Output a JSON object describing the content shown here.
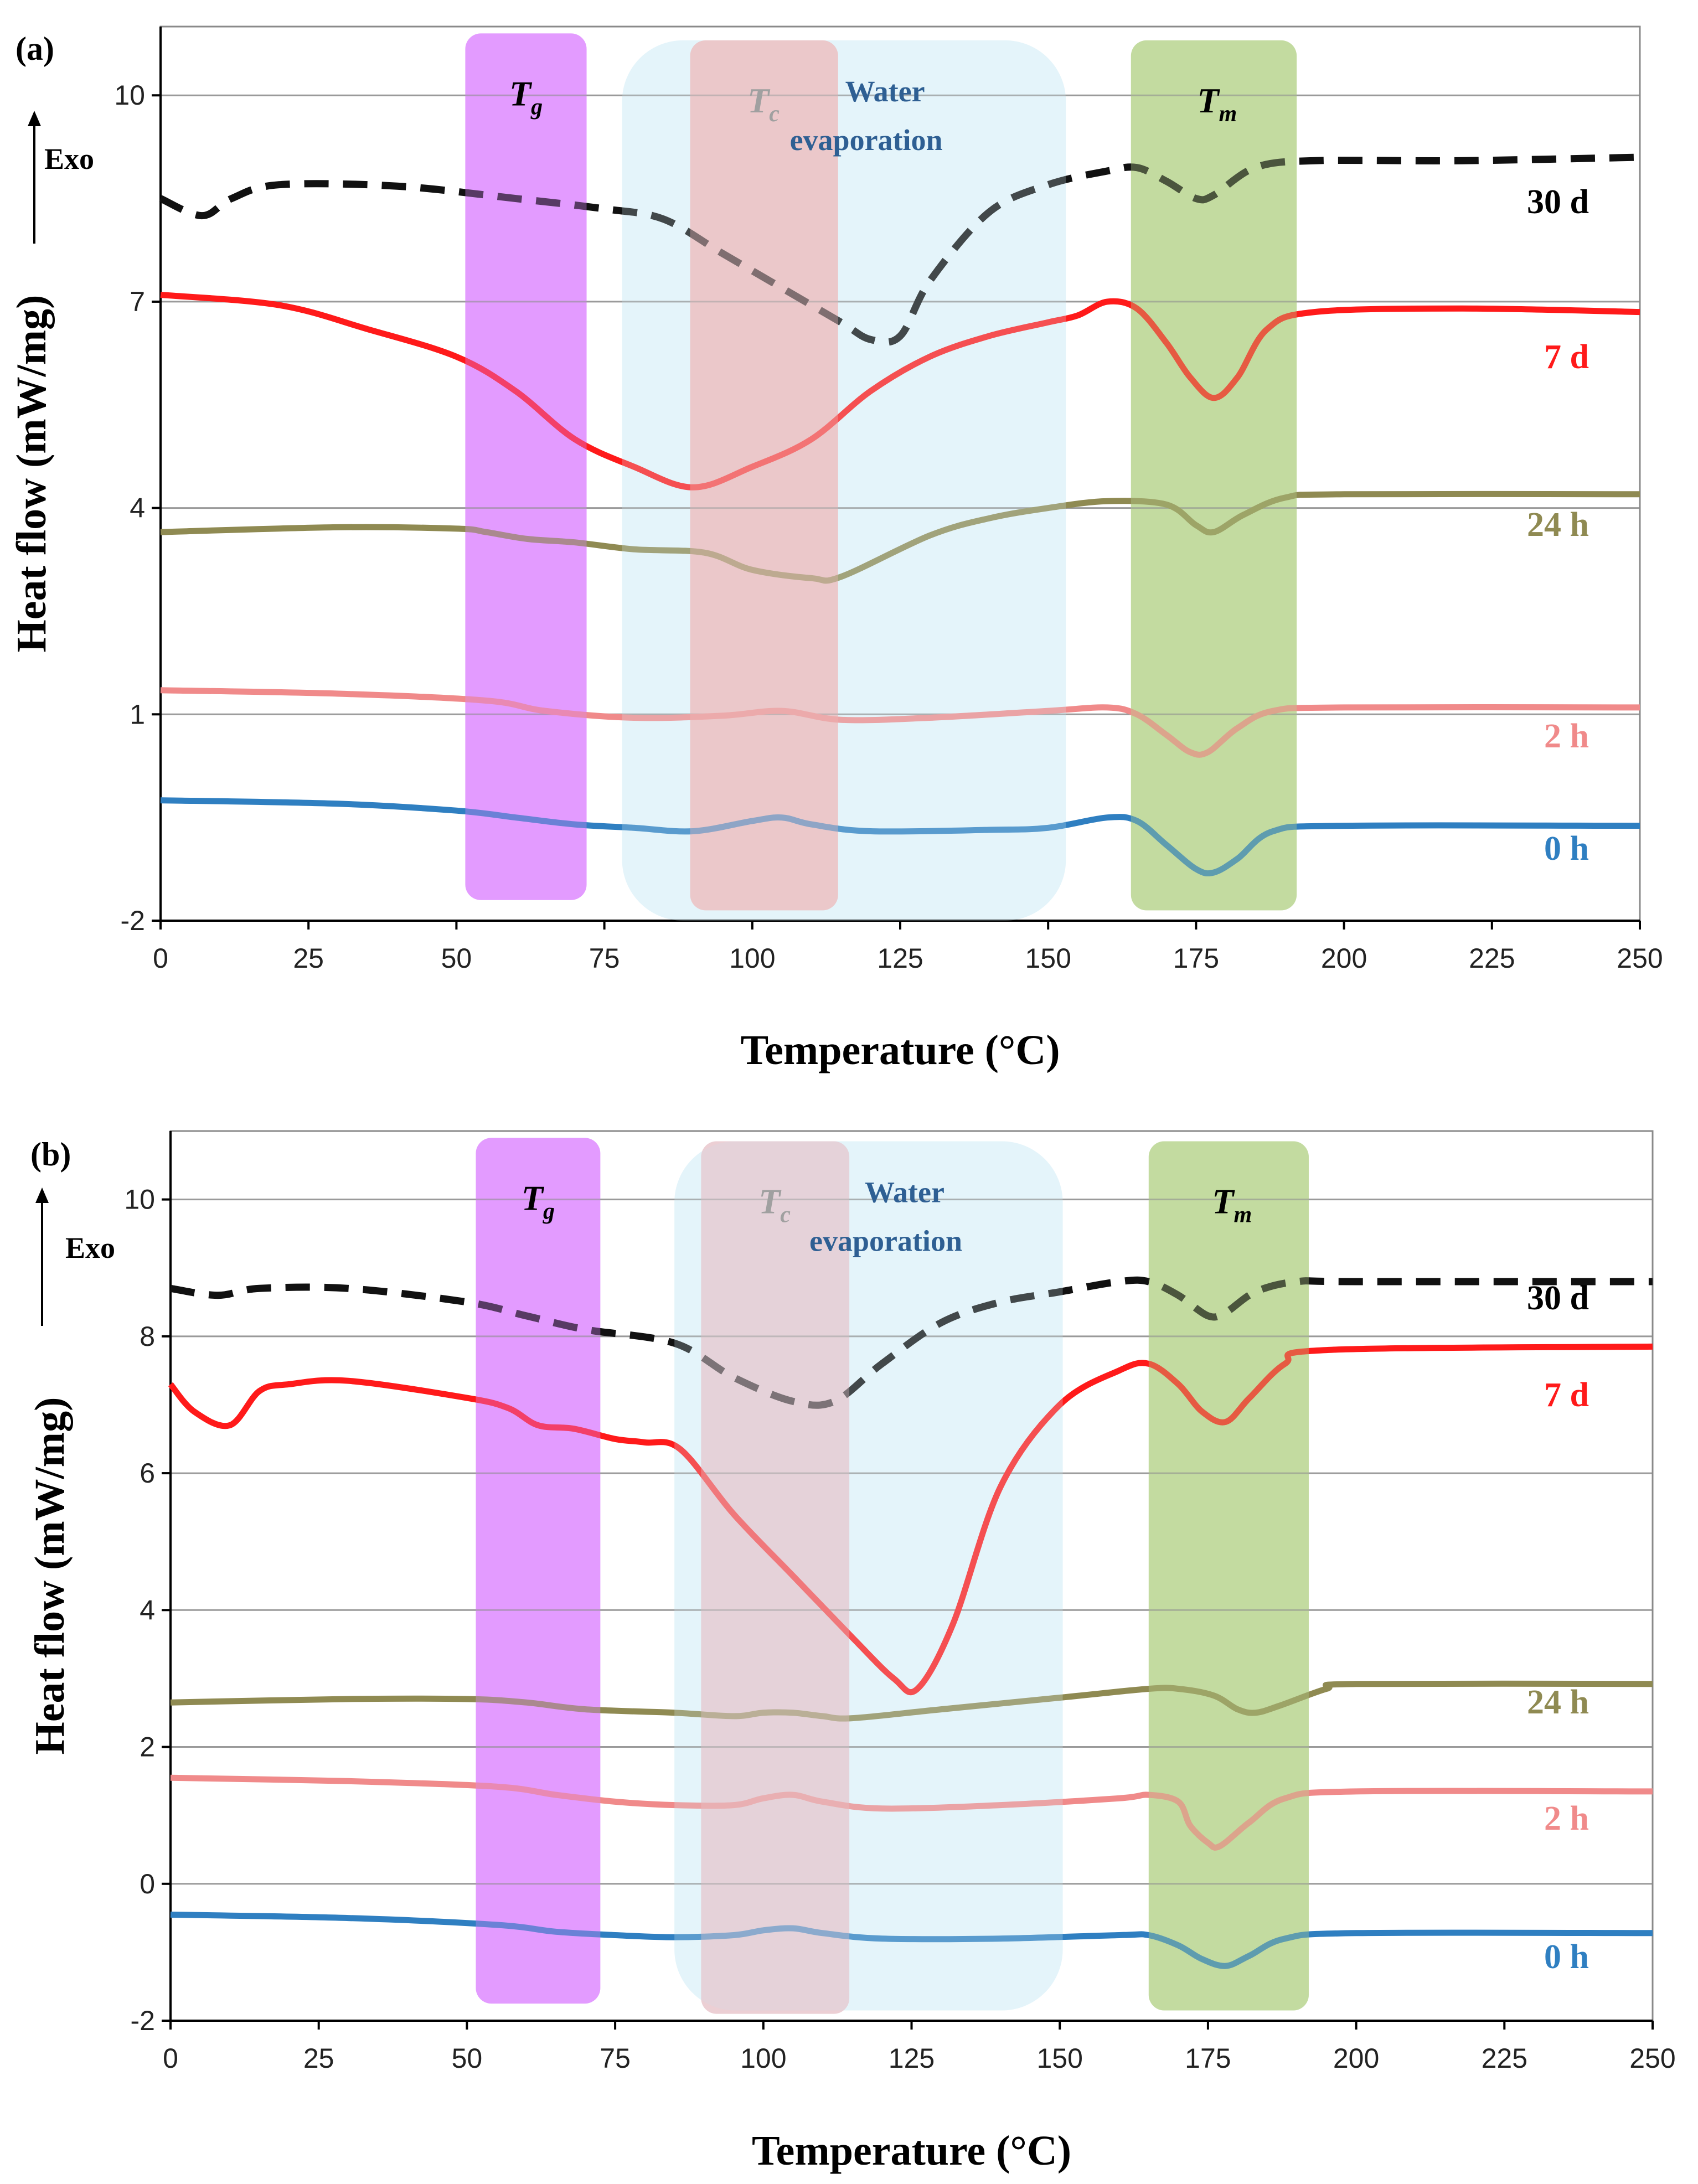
{
  "chart_data": [
    {
      "panel_label": "(a)",
      "type": "line",
      "xlabel": "Temperature (°C)",
      "ylabel": "Heat flow (mW/mg)",
      "exo_label": "Exo",
      "xlim": [
        0,
        250
      ],
      "ylim": [
        -2,
        11
      ],
      "xticks": [
        0,
        25,
        50,
        75,
        100,
        125,
        150,
        175,
        200,
        225,
        250
      ],
      "yticks": [
        -2,
        1,
        4,
        7,
        10
      ],
      "regions": [
        {
          "name": "Tg",
          "main": "T",
          "sub": "g",
          "x": [
            51.5,
            72
          ],
          "y": [
            -1.7,
            10.9
          ],
          "color": "#dd88ff",
          "text_color": "#000000"
        },
        {
          "name": "Water evaporation",
          "lines": [
            "Water",
            "evaporation"
          ],
          "x": [
            78,
            153
          ],
          "y": [
            -2,
            10.8
          ],
          "color": "#d6eef8",
          "text_color": "#2e5f93"
        },
        {
          "name": "Tc",
          "main": "T",
          "sub": "c",
          "x": [
            89.5,
            114.5
          ],
          "y": [
            -1.85,
            10.8
          ],
          "color": "#f2b8b8",
          "text_color": "#a0a0a0"
        },
        {
          "name": "Tm",
          "main": "T",
          "sub": "m",
          "x": [
            164,
            192
          ],
          "y": [
            -1.85,
            10.8
          ],
          "color": "#b7d48e",
          "text_color": "#000000"
        }
      ],
      "series": [
        {
          "name": "30 d",
          "color": "#111111",
          "dash": true,
          "x": [
            0,
            7,
            12,
            20,
            40,
            60,
            75,
            85,
            95,
            105,
            115,
            120,
            125,
            130,
            140,
            150,
            160,
            165,
            170,
            175,
            178,
            185,
            195,
            220,
            250
          ],
          "y": [
            8.5,
            8.25,
            8.5,
            8.7,
            8.68,
            8.5,
            8.35,
            8.2,
            7.7,
            7.2,
            6.7,
            6.45,
            6.5,
            7.3,
            8.3,
            8.7,
            8.9,
            8.95,
            8.75,
            8.5,
            8.55,
            8.95,
            9.05,
            9.05,
            9.1
          ]
        },
        {
          "name": "7 d",
          "color": "#ff1a1a",
          "dash": false,
          "x": [
            0,
            20,
            35,
            50,
            60,
            70,
            80,
            90,
            100,
            110,
            120,
            130,
            140,
            150,
            155,
            160,
            165,
            170,
            174,
            178,
            182,
            187,
            195,
            220,
            250
          ],
          "y": [
            7.1,
            6.95,
            6.6,
            6.2,
            5.7,
            5.0,
            4.6,
            4.3,
            4.6,
            5.0,
            5.7,
            6.2,
            6.5,
            6.7,
            6.8,
            7.0,
            6.9,
            6.4,
            5.9,
            5.6,
            5.9,
            6.6,
            6.85,
            6.9,
            6.85
          ]
        },
        {
          "name": "24 h",
          "color": "#8f8a52",
          "dash": false,
          "x": [
            0,
            30,
            50,
            55,
            62,
            70,
            80,
            92,
            100,
            110,
            115,
            130,
            140,
            150,
            160,
            170,
            175,
            178,
            183,
            190,
            200,
            250
          ],
          "y": [
            3.65,
            3.72,
            3.7,
            3.65,
            3.55,
            3.5,
            3.4,
            3.35,
            3.1,
            2.98,
            3.0,
            3.6,
            3.85,
            4.0,
            4.1,
            4.05,
            3.75,
            3.65,
            3.9,
            4.15,
            4.2,
            4.2
          ]
        },
        {
          "name": "2 h",
          "color": "#f08a8a",
          "dash": false,
          "x": [
            0,
            30,
            55,
            65,
            80,
            95,
            105,
            115,
            130,
            150,
            160,
            165,
            170,
            174,
            177,
            182,
            188,
            200,
            250
          ],
          "y": [
            1.35,
            1.3,
            1.2,
            1.05,
            0.95,
            0.98,
            1.05,
            0.92,
            0.95,
            1.05,
            1.1,
            1.0,
            0.7,
            0.45,
            0.45,
            0.8,
            1.05,
            1.1,
            1.1
          ]
        },
        {
          "name": "0 h",
          "color": "#2f7fc1",
          "dash": false,
          "x": [
            0,
            30,
            50,
            60,
            70,
            80,
            90,
            100,
            105,
            110,
            120,
            140,
            150,
            160,
            165,
            170,
            175,
            178,
            182,
            188,
            200,
            250
          ],
          "y": [
            -0.25,
            -0.3,
            -0.4,
            -0.5,
            -0.6,
            -0.65,
            -0.7,
            -0.55,
            -0.5,
            -0.6,
            -0.7,
            -0.68,
            -0.65,
            -0.5,
            -0.55,
            -0.9,
            -1.25,
            -1.3,
            -1.1,
            -0.7,
            -0.62,
            -0.62
          ]
        }
      ]
    },
    {
      "panel_label": "(b)",
      "type": "line",
      "xlabel": "Temperature (°C)",
      "ylabel": "Heat flow (mW/mg)",
      "exo_label": "Exo",
      "xlim": [
        0,
        250
      ],
      "ylim": [
        -2,
        11
      ],
      "xticks": [
        0,
        25,
        50,
        75,
        100,
        125,
        150,
        175,
        200,
        225,
        250
      ],
      "yticks": [
        -2,
        0,
        2,
        4,
        6,
        8,
        10
      ],
      "regions": [
        {
          "name": "Tg",
          "main": "T",
          "sub": "g",
          "x": [
            51.5,
            72.5
          ],
          "y": [
            -1.75,
            10.9
          ],
          "color": "#dd88ff",
          "text_color": "#000000"
        },
        {
          "name": "Water evaporation",
          "lines": [
            "Water",
            "evaporation"
          ],
          "x": [
            85,
            150.5
          ],
          "y": [
            -1.85,
            10.85
          ],
          "color": "#d6eef8",
          "text_color": "#2e5f93"
        },
        {
          "name": "Tc",
          "main": "T",
          "sub": "c",
          "x": [
            89.5,
            114.5
          ],
          "y": [
            -1.9,
            10.85
          ],
          "color": "#e8c6cc",
          "text_color": "#a0a0a0"
        },
        {
          "name": "Tm",
          "main": "T",
          "sub": "m",
          "x": [
            165,
            192
          ],
          "y": [
            -1.85,
            10.85
          ],
          "color": "#b7d48e",
          "text_color": "#000000"
        }
      ],
      "series": [
        {
          "name": "30 d",
          "color": "#111111",
          "dash": true,
          "x": [
            0,
            8,
            15,
            30,
            50,
            60,
            70,
            85,
            95,
            105,
            112,
            120,
            130,
            140,
            150,
            160,
            165,
            170,
            175,
            178,
            183,
            190,
            200,
            250
          ],
          "y": [
            8.7,
            8.6,
            8.7,
            8.7,
            8.5,
            8.3,
            8.1,
            7.9,
            7.4,
            7.05,
            7.05,
            7.6,
            8.2,
            8.5,
            8.65,
            8.8,
            8.8,
            8.6,
            8.3,
            8.35,
            8.65,
            8.8,
            8.8,
            8.8
          ]
        },
        {
          "name": "7 d",
          "color": "#ff1a1a",
          "dash": false,
          "x": [
            0,
            4,
            10,
            15,
            20,
            30,
            50,
            57,
            62,
            68,
            75,
            80,
            86,
            95,
            105,
            115,
            122,
            126,
            132,
            140,
            150,
            160,
            165,
            170,
            174,
            178,
            182,
            188,
            195,
            250
          ],
          "y": [
            7.3,
            6.9,
            6.7,
            7.2,
            7.3,
            7.35,
            7.1,
            6.95,
            6.7,
            6.65,
            6.5,
            6.45,
            6.35,
            5.4,
            4.5,
            3.6,
            3.0,
            2.85,
            3.8,
            5.8,
            7.0,
            7.5,
            7.6,
            7.3,
            6.9,
            6.75,
            7.1,
            7.6,
            7.8,
            7.85
          ]
        },
        {
          "name": "24 h",
          "color": "#8f8a52",
          "dash": false,
          "x": [
            0,
            30,
            50,
            60,
            70,
            85,
            95,
            100,
            105,
            110,
            115,
            130,
            150,
            165,
            170,
            176,
            180,
            183,
            187,
            195,
            200,
            250
          ],
          "y": [
            2.65,
            2.7,
            2.7,
            2.65,
            2.55,
            2.5,
            2.45,
            2.5,
            2.5,
            2.45,
            2.42,
            2.55,
            2.72,
            2.85,
            2.85,
            2.75,
            2.55,
            2.5,
            2.6,
            2.85,
            2.92,
            2.92
          ]
        },
        {
          "name": "2 h",
          "color": "#f08a8a",
          "dash": false,
          "x": [
            0,
            30,
            55,
            65,
            75,
            85,
            95,
            100,
            105,
            110,
            120,
            140,
            160,
            165,
            170,
            172,
            175,
            177,
            182,
            188,
            200,
            250
          ],
          "y": [
            1.55,
            1.5,
            1.42,
            1.3,
            1.2,
            1.15,
            1.15,
            1.25,
            1.3,
            1.2,
            1.1,
            1.15,
            1.25,
            1.3,
            1.2,
            0.85,
            0.6,
            0.55,
            0.9,
            1.25,
            1.35,
            1.35
          ]
        },
        {
          "name": "0 h",
          "color": "#2f7fc1",
          "dash": false,
          "x": [
            0,
            30,
            55,
            65,
            75,
            85,
            95,
            100,
            105,
            110,
            120,
            140,
            160,
            165,
            170,
            174,
            178,
            182,
            188,
            200,
            250
          ],
          "y": [
            -0.45,
            -0.5,
            -0.6,
            -0.7,
            -0.75,
            -0.78,
            -0.75,
            -0.68,
            -0.65,
            -0.72,
            -0.8,
            -0.8,
            -0.75,
            -0.75,
            -0.9,
            -1.1,
            -1.2,
            -1.05,
            -0.8,
            -0.72,
            -0.72
          ]
        }
      ]
    }
  ]
}
